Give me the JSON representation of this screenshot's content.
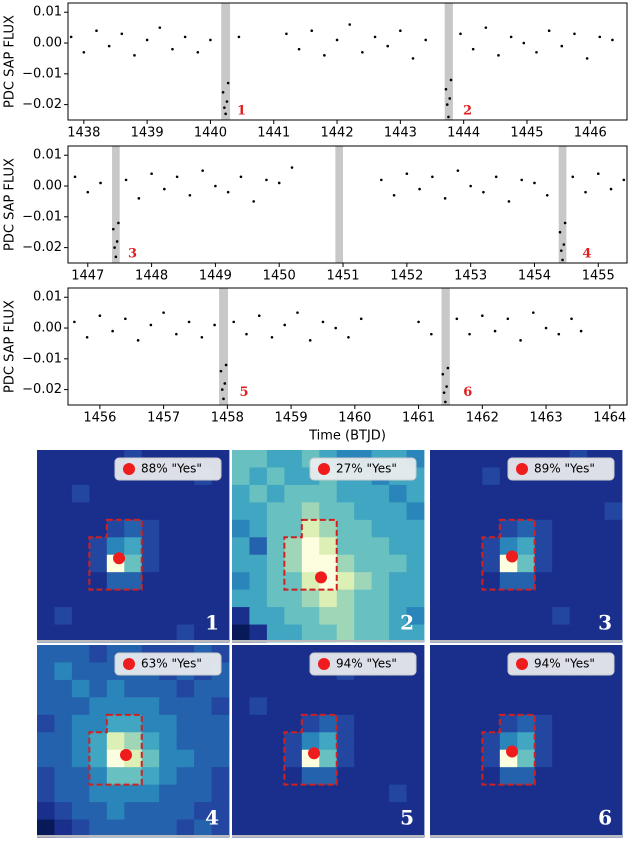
{
  "chart_data": [
    {
      "type": "scatter",
      "ylabel": "PDC SAP FLUX",
      "color": "#000000",
      "highlight_color": "#c8c8c8",
      "xlim": [
        1437.75,
        1446.58
      ],
      "ylim": [
        -0.025,
        0.013
      ],
      "xticks": [
        1438,
        1439,
        1440,
        1441,
        1442,
        1443,
        1444,
        1445,
        1446
      ],
      "yticks": [
        0.01,
        {
          "value": 0,
          "label": "0.00"
        },
        {
          "value": -0.01,
          "label": "−0.01"
        },
        {
          "value": -0.02,
          "label": "−0.02"
        }
      ],
      "shaded": [
        [
          1440.17,
          1440.31
        ],
        [
          1443.7,
          1443.83
        ]
      ],
      "annotations": [
        {
          "text": "1",
          "x": 1440.42,
          "y": -0.022
        },
        {
          "text": "2",
          "x": 1443.99,
          "y": -0.022
        }
      ],
      "x": [
        1437.8,
        1438.0,
        1438.2,
        1438.4,
        1438.6,
        1438.8,
        1439.0,
        1439.2,
        1439.4,
        1439.6,
        1439.8,
        1440.0,
        1440.2,
        1440.22,
        1440.24,
        1440.26,
        1440.28,
        1440.45,
        1441.2,
        1441.4,
        1441.6,
        1441.8,
        1442.0,
        1442.2,
        1442.4,
        1442.6,
        1442.8,
        1443.0,
        1443.2,
        1443.4,
        1443.72,
        1443.74,
        1443.76,
        1443.78,
        1443.8,
        1443.95,
        1444.15,
        1444.35,
        1444.55,
        1444.75,
        1444.95,
        1445.15,
        1445.35,
        1445.55,
        1445.75,
        1445.95,
        1446.15,
        1446.35
      ],
      "y": [
        0.002,
        -0.003,
        0.004,
        -0.001,
        0.003,
        -0.004,
        0.001,
        0.005,
        -0.002,
        0.002,
        -0.003,
        0.001,
        -0.016,
        -0.021,
        -0.023,
        -0.019,
        -0.013,
        0.002,
        0.003,
        -0.002,
        0.004,
        -0.004,
        0.001,
        0.006,
        -0.003,
        0.002,
        -0.001,
        0.004,
        -0.005,
        0.001,
        -0.015,
        -0.02,
        -0.024,
        -0.018,
        -0.012,
        0.003,
        -0.002,
        0.005,
        -0.004,
        0.002,
        0.0,
        -0.003,
        0.004,
        -0.001,
        0.003,
        -0.005,
        0.002,
        0.001
      ]
    },
    {
      "type": "scatter",
      "ylabel": "PDC SAP FLUX",
      "color": "#000000",
      "highlight_color": "#c8c8c8",
      "xlim": [
        1446.69,
        1455.45
      ],
      "ylim": [
        -0.025,
        0.013
      ],
      "xticks": [
        1447,
        1448,
        1449,
        1450,
        1451,
        1452,
        1453,
        1454,
        1455
      ],
      "yticks": [
        0.01,
        {
          "value": 0,
          "label": "0.00"
        },
        {
          "value": -0.01,
          "label": "−0.01"
        },
        {
          "value": -0.02,
          "label": "−0.02"
        }
      ],
      "shaded": [
        [
          1447.38,
          1447.5
        ],
        [
          1450.88,
          1451.0
        ],
        [
          1454.38,
          1454.5
        ]
      ],
      "annotations": [
        {
          "text": "3",
          "x": 1447.63,
          "y": -0.022
        },
        {
          "text": "4",
          "x": 1454.75,
          "y": -0.022
        }
      ],
      "x": [
        1446.8,
        1447.0,
        1447.2,
        1447.4,
        1447.42,
        1447.44,
        1447.46,
        1447.48,
        1447.6,
        1447.8,
        1448.0,
        1448.2,
        1448.4,
        1448.6,
        1448.8,
        1449.0,
        1449.2,
        1449.4,
        1449.6,
        1449.8,
        1450.0,
        1450.2,
        1451.6,
        1451.8,
        1452.0,
        1452.2,
        1452.4,
        1452.6,
        1452.8,
        1453.0,
        1453.2,
        1453.4,
        1453.6,
        1453.8,
        1454.0,
        1454.2,
        1454.4,
        1454.42,
        1454.44,
        1454.46,
        1454.48,
        1454.6,
        1454.8,
        1455.0,
        1455.2,
        1455.4
      ],
      "y": [
        0.003,
        -0.002,
        0.001,
        -0.014,
        -0.02,
        -0.023,
        -0.018,
        -0.012,
        0.002,
        -0.004,
        0.004,
        -0.001,
        0.003,
        -0.003,
        0.005,
        0.0,
        -0.002,
        0.003,
        -0.005,
        0.002,
        0.001,
        0.006,
        0.002,
        -0.003,
        0.004,
        -0.001,
        0.003,
        -0.004,
        0.005,
        0.0,
        -0.002,
        0.003,
        -0.005,
        0.002,
        0.001,
        -0.003,
        -0.015,
        -0.021,
        -0.024,
        -0.019,
        -0.012,
        0.003,
        -0.002,
        0.004,
        -0.001,
        0.002
      ]
    },
    {
      "type": "scatter",
      "ylabel": "PDC SAP FLUX",
      "xlabel": "Time (BTJD)",
      "color": "#000000",
      "highlight_color": "#c8c8c8",
      "xlim": [
        1455.5,
        1464.27
      ],
      "ylim": [
        -0.025,
        0.013
      ],
      "xticks": [
        1456,
        1457,
        1458,
        1459,
        1460,
        1461,
        1462,
        1463,
        1464
      ],
      "yticks": [
        0.01,
        {
          "value": 0,
          "label": "0.00"
        },
        {
          "value": -0.01,
          "label": "−0.01"
        },
        {
          "value": -0.02,
          "label": "−0.02"
        }
      ],
      "shaded": [
        [
          1457.87,
          1458.01
        ],
        [
          1461.36,
          1461.49
        ]
      ],
      "annotations": [
        {
          "text": "5",
          "x": 1458.19,
          "y": -0.021
        },
        {
          "text": "6",
          "x": 1461.7,
          "y": -0.021
        }
      ],
      "x": [
        1455.6,
        1455.8,
        1456.0,
        1456.2,
        1456.4,
        1456.6,
        1456.8,
        1457.0,
        1457.2,
        1457.4,
        1457.6,
        1457.8,
        1457.9,
        1457.92,
        1457.94,
        1457.96,
        1457.98,
        1458.1,
        1458.3,
        1458.5,
        1458.7,
        1458.9,
        1459.1,
        1459.3,
        1459.5,
        1459.7,
        1459.9,
        1460.1,
        1461.0,
        1461.2,
        1461.38,
        1461.4,
        1461.42,
        1461.44,
        1461.46,
        1461.6,
        1461.8,
        1462.0,
        1462.2,
        1462.4,
        1462.6,
        1462.8,
        1463.0,
        1463.2,
        1463.4,
        1463.55
      ],
      "y": [
        0.002,
        -0.003,
        0.004,
        -0.001,
        0.003,
        -0.004,
        0.001,
        0.005,
        -0.002,
        0.002,
        -0.003,
        0.001,
        -0.014,
        -0.02,
        -0.023,
        -0.018,
        -0.012,
        0.002,
        -0.002,
        0.004,
        -0.003,
        0.001,
        0.005,
        -0.004,
        0.002,
        0.0,
        -0.003,
        0.003,
        0.002,
        -0.002,
        -0.015,
        -0.021,
        -0.024,
        -0.019,
        -0.013,
        0.003,
        -0.002,
        0.004,
        -0.001,
        0.003,
        -0.004,
        0.005,
        0.0,
        -0.002,
        0.003,
        -0.001
      ]
    },
    {
      "type": "heatmap",
      "legend": "88% \"Yes\"",
      "label": "1",
      "centroid": [
        4.7,
        6.2
      ],
      "values": [
        [
          1,
          1,
          1,
          1,
          1,
          2,
          1,
          1,
          1,
          1,
          1
        ],
        [
          1,
          1,
          1,
          1,
          1,
          1,
          1,
          1,
          1,
          2,
          1
        ],
        [
          1,
          1,
          2,
          1,
          1,
          1,
          1,
          1,
          1,
          1,
          1
        ],
        [
          1,
          1,
          1,
          1,
          1,
          1,
          1,
          1,
          1,
          1,
          1
        ],
        [
          1,
          1,
          1,
          1,
          2,
          3,
          2,
          1,
          1,
          1,
          1
        ],
        [
          1,
          1,
          1,
          2,
          4,
          5,
          2,
          1,
          1,
          1,
          1
        ],
        [
          1,
          1,
          1,
          2,
          9,
          6,
          2,
          1,
          1,
          1,
          1
        ],
        [
          1,
          1,
          1,
          1,
          3,
          3,
          1,
          1,
          1,
          1,
          1
        ],
        [
          1,
          1,
          1,
          1,
          1,
          1,
          1,
          1,
          1,
          1,
          1
        ],
        [
          1,
          2,
          1,
          1,
          1,
          1,
          1,
          1,
          1,
          1,
          1
        ],
        [
          1,
          1,
          1,
          1,
          1,
          1,
          1,
          1,
          2,
          1,
          1
        ]
      ]
    },
    {
      "type": "heatmap",
      "legend": "27% \"Yes\"",
      "label": "2",
      "centroid": [
        5.1,
        7.3
      ],
      "values": [
        [
          6,
          6,
          5,
          5,
          6,
          5,
          4,
          4,
          5,
          5,
          4
        ],
        [
          6,
          5,
          6,
          5,
          5,
          6,
          5,
          5,
          4,
          5,
          5
        ],
        [
          5,
          6,
          5,
          6,
          6,
          6,
          5,
          5,
          5,
          4,
          5
        ],
        [
          5,
          5,
          6,
          6,
          7,
          6,
          6,
          5,
          5,
          5,
          4
        ],
        [
          4,
          5,
          6,
          6,
          8,
          7,
          6,
          6,
          5,
          5,
          5
        ],
        [
          5,
          3,
          6,
          7,
          9,
          8,
          6,
          6,
          6,
          5,
          5
        ],
        [
          5,
          5,
          6,
          7,
          9,
          9,
          7,
          6,
          6,
          6,
          5
        ],
        [
          4,
          5,
          6,
          6,
          8,
          9,
          8,
          7,
          6,
          5,
          5
        ],
        [
          5,
          5,
          6,
          6,
          7,
          8,
          7,
          6,
          6,
          5,
          5
        ],
        [
          1,
          5,
          5,
          6,
          6,
          7,
          7,
          6,
          6,
          5,
          4
        ],
        [
          0,
          1,
          5,
          5,
          6,
          6,
          7,
          6,
          6,
          5,
          5
        ]
      ]
    },
    {
      "type": "heatmap",
      "legend": "89% \"Yes\"",
      "label": "3",
      "centroid": [
        4.7,
        6.1
      ],
      "values": [
        [
          1,
          1,
          1,
          1,
          1,
          1,
          1,
          1,
          2,
          1,
          1
        ],
        [
          1,
          1,
          1,
          2,
          1,
          1,
          1,
          1,
          1,
          1,
          1
        ],
        [
          1,
          1,
          1,
          1,
          1,
          1,
          1,
          1,
          1,
          1,
          1
        ],
        [
          1,
          1,
          1,
          1,
          1,
          1,
          1,
          1,
          1,
          1,
          2
        ],
        [
          1,
          1,
          1,
          1,
          2,
          3,
          2,
          1,
          1,
          1,
          1
        ],
        [
          1,
          1,
          1,
          2,
          4,
          5,
          2,
          1,
          1,
          1,
          1
        ],
        [
          1,
          1,
          1,
          2,
          9,
          6,
          2,
          1,
          1,
          1,
          1
        ],
        [
          1,
          1,
          1,
          1,
          3,
          3,
          1,
          1,
          1,
          1,
          1
        ],
        [
          1,
          1,
          1,
          1,
          1,
          1,
          1,
          1,
          1,
          1,
          1
        ],
        [
          1,
          1,
          1,
          1,
          1,
          1,
          1,
          2,
          1,
          1,
          1
        ],
        [
          1,
          1,
          1,
          1,
          1,
          1,
          1,
          1,
          1,
          1,
          1
        ]
      ]
    },
    {
      "type": "heatmap",
      "legend": "63% \"Yes\"",
      "label": "4",
      "centroid": [
        5.1,
        6.3
      ],
      "values": [
        [
          3,
          3,
          3,
          2,
          3,
          3,
          2,
          2,
          2,
          3,
          2
        ],
        [
          3,
          4,
          3,
          3,
          3,
          3,
          3,
          2,
          3,
          2,
          3
        ],
        [
          3,
          3,
          4,
          3,
          4,
          3,
          3,
          3,
          2,
          3,
          3
        ],
        [
          3,
          3,
          3,
          4,
          4,
          4,
          4,
          3,
          3,
          3,
          2
        ],
        [
          2,
          3,
          4,
          4,
          5,
          5,
          4,
          4,
          3,
          3,
          3
        ],
        [
          3,
          3,
          4,
          5,
          8,
          7,
          5,
          4,
          3,
          3,
          3
        ],
        [
          3,
          3,
          4,
          5,
          9,
          8,
          6,
          4,
          4,
          3,
          3
        ],
        [
          2,
          3,
          3,
          4,
          6,
          6,
          5,
          4,
          3,
          3,
          2
        ],
        [
          2,
          3,
          3,
          4,
          4,
          4,
          4,
          3,
          3,
          3,
          2
        ],
        [
          1,
          2,
          3,
          3,
          4,
          3,
          3,
          3,
          3,
          2,
          2
        ],
        [
          0,
          1,
          2,
          3,
          3,
          3,
          3,
          3,
          2,
          3,
          2
        ]
      ]
    },
    {
      "type": "heatmap",
      "legend": "94% \"Yes\"",
      "label": "5",
      "centroid": [
        4.7,
        6.2
      ],
      "values": [
        [
          1,
          1,
          1,
          1,
          1,
          1,
          1,
          1,
          1,
          1,
          1
        ],
        [
          1,
          1,
          1,
          1,
          1,
          1,
          2,
          1,
          1,
          1,
          1
        ],
        [
          1,
          1,
          1,
          1,
          1,
          1,
          1,
          1,
          1,
          1,
          1
        ],
        [
          1,
          2,
          1,
          1,
          1,
          1,
          1,
          1,
          1,
          1,
          1
        ],
        [
          1,
          1,
          1,
          1,
          2,
          3,
          2,
          1,
          1,
          1,
          1
        ],
        [
          1,
          1,
          1,
          2,
          4,
          5,
          2,
          1,
          1,
          1,
          1
        ],
        [
          1,
          1,
          1,
          2,
          9,
          6,
          2,
          1,
          1,
          1,
          1
        ],
        [
          1,
          1,
          1,
          1,
          3,
          3,
          1,
          1,
          1,
          1,
          1
        ],
        [
          1,
          1,
          1,
          1,
          1,
          1,
          1,
          1,
          1,
          2,
          1
        ],
        [
          1,
          1,
          1,
          1,
          1,
          1,
          1,
          1,
          1,
          1,
          1
        ],
        [
          1,
          1,
          1,
          1,
          1,
          1,
          1,
          1,
          1,
          1,
          1
        ]
      ]
    },
    {
      "type": "heatmap",
      "legend": "94% \"Yes\"",
      "label": "6",
      "centroid": [
        4.7,
        6.1
      ],
      "values": [
        [
          1,
          1,
          1,
          1,
          1,
          1,
          1,
          1,
          1,
          1,
          1
        ],
        [
          1,
          1,
          1,
          1,
          1,
          1,
          1,
          1,
          1,
          1,
          1
        ],
        [
          1,
          1,
          1,
          1,
          1,
          1,
          1,
          1,
          1,
          1,
          1
        ],
        [
          1,
          1,
          1,
          1,
          1,
          1,
          1,
          1,
          1,
          1,
          1
        ],
        [
          1,
          1,
          1,
          1,
          2,
          3,
          2,
          1,
          1,
          1,
          1
        ],
        [
          1,
          1,
          1,
          2,
          4,
          5,
          2,
          1,
          1,
          1,
          1
        ],
        [
          1,
          1,
          1,
          2,
          9,
          6,
          2,
          1,
          1,
          1,
          1
        ],
        [
          1,
          1,
          1,
          1,
          3,
          3,
          1,
          1,
          1,
          1,
          1
        ],
        [
          1,
          1,
          1,
          1,
          1,
          1,
          1,
          1,
          1,
          1,
          1
        ],
        [
          1,
          1,
          1,
          1,
          1,
          1,
          1,
          1,
          1,
          1,
          1
        ],
        [
          1,
          1,
          1,
          1,
          1,
          1,
          1,
          1,
          1,
          1,
          1
        ]
      ]
    }
  ],
  "colormap": [
    "#08195a",
    "#1a2f8c",
    "#2346a0",
    "#2562ad",
    "#2a86ba",
    "#41a6c2",
    "#68c0c0",
    "#a0d6b8",
    "#dcefb5",
    "#fdfde0"
  ],
  "marker_color": "#ee1c1c"
}
